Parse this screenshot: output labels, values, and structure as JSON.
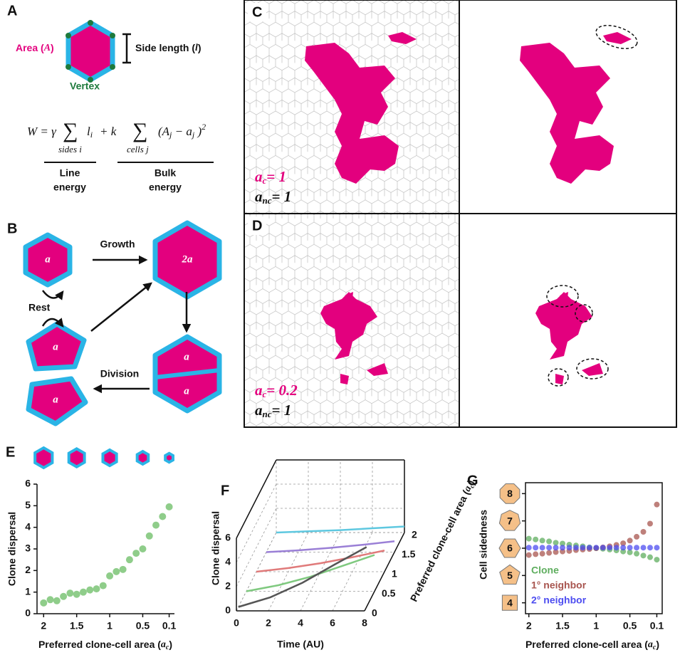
{
  "panel_a": {
    "label": "A",
    "area": [
      "Area (",
      "A",
      ")"
    ],
    "side": [
      "Side length (",
      "l",
      ")"
    ],
    "vertex": "Vertex",
    "equation": {
      "lhs": "W = γ",
      "sum1": "∑",
      "sum1_under": "sides i",
      "term1": "l",
      "term1_sub": "i",
      "plus": "+ k",
      "sum2": "∑",
      "sum2_under": "cells j",
      "term2": "(A",
      "term2_sub": "j",
      "minus": " − a",
      "minus_sub": "j",
      "close": ")",
      "power": "2"
    },
    "line_energy": [
      "Line",
      "energy"
    ],
    "bulk_energy": [
      "Bulk",
      "energy"
    ]
  },
  "panel_b": {
    "label": "B",
    "growth": "Growth",
    "rest": "Rest",
    "division": "Division",
    "cells": [
      "a",
      "2a",
      "a",
      "a",
      "a",
      "a"
    ]
  },
  "panel_c": {
    "label": "C",
    "clone": [
      "a",
      "c",
      "= 1"
    ],
    "nonclone": [
      "a",
      "nc",
      "= 1"
    ]
  },
  "panel_d": {
    "label": "D",
    "clone": [
      "a",
      "c",
      "= 0.2"
    ],
    "nonclone": [
      "a",
      "nc",
      "= 1"
    ]
  },
  "chart_data": [
    {
      "type": "scatter",
      "panel": "E",
      "x": [
        2,
        1.9,
        1.8,
        1.7,
        1.6,
        1.5,
        1.4,
        1.3,
        1.2,
        1.1,
        1,
        0.9,
        0.8,
        0.7,
        0.6,
        0.5,
        0.4,
        0.3,
        0.2,
        0.1
      ],
      "values": [
        0.5,
        0.65,
        0.6,
        0.8,
        0.95,
        0.9,
        1.0,
        1.1,
        1.15,
        1.3,
        1.75,
        1.95,
        2.05,
        2.5,
        2.8,
        3.0,
        3.6,
        4.1,
        4.5,
        4.95
      ],
      "color": "#8fcd8a",
      "xlim": [
        2.1,
        0.02
      ],
      "ylim": [
        0,
        6
      ],
      "xticks": [
        2,
        1.5,
        1,
        0.5,
        0.1
      ],
      "yticks": [
        0,
        1,
        2,
        3,
        4,
        5,
        6
      ],
      "ylabel": "Clone dispersal",
      "xlabel_parts": [
        "Preferred clone-cell area (",
        "a",
        "c",
        ")"
      ]
    },
    {
      "type": "line3d",
      "panel": "F",
      "x": [
        0,
        2,
        4,
        6,
        8
      ],
      "series": [
        {
          "depth": 2,
          "color": "#5ec8e0",
          "values": [
            0,
            0.1,
            0.2,
            0.35,
            0.5
          ]
        },
        {
          "depth": 1.5,
          "color": "#9a7fd6",
          "values": [
            0,
            0.15,
            0.35,
            0.6,
            0.9
          ]
        },
        {
          "depth": 1,
          "color": "#e07a7a",
          "values": [
            0,
            0.3,
            0.7,
            1.2,
            1.75
          ]
        },
        {
          "depth": 0.5,
          "color": "#7fc97f",
          "values": [
            0,
            0.5,
            1.2,
            2.1,
            3.0
          ]
        },
        {
          "depth": 0.1,
          "color": "#555555",
          "values": [
            0,
            0.8,
            2.0,
            3.5,
            4.95
          ]
        }
      ],
      "xlim": [
        0,
        8
      ],
      "ylim": [
        0,
        6
      ],
      "dlim": [
        0,
        2
      ],
      "xticks": [
        0,
        2,
        4,
        6,
        8
      ],
      "yticks": [
        0,
        2,
        4,
        6
      ],
      "dticks": [
        0,
        0.5,
        1,
        1.5,
        2
      ],
      "xlabel": "Time (AU)",
      "ylabel": "Clone dispersal",
      "dlabel_parts": [
        "Preferred clone-cell area (",
        "a",
        "c",
        ")"
      ]
    },
    {
      "type": "scatter-multi",
      "panel": "G",
      "x": [
        2,
        1.9,
        1.8,
        1.7,
        1.6,
        1.5,
        1.4,
        1.3,
        1.2,
        1.1,
        1,
        0.9,
        0.8,
        0.7,
        0.6,
        0.5,
        0.4,
        0.3,
        0.2,
        0.1
      ],
      "series": [
        {
          "name": "Clone",
          "color": "#5fae5f",
          "values": [
            6.35,
            6.32,
            6.28,
            6.25,
            6.2,
            6.17,
            6.13,
            6.1,
            6.07,
            6.03,
            6.0,
            5.98,
            5.95,
            5.92,
            5.88,
            5.85,
            5.8,
            5.73,
            5.67,
            5.58
          ]
        },
        {
          "name": "1° neighbor",
          "color": "#a8554f",
          "values": [
            5.75,
            5.78,
            5.8,
            5.83,
            5.86,
            5.88,
            5.9,
            5.93,
            5.95,
            5.97,
            6.0,
            6.03,
            6.07,
            6.12,
            6.18,
            6.28,
            6.42,
            6.6,
            6.9,
            7.6
          ]
        },
        {
          "name": "2° neighbor",
          "color": "#4d4df0",
          "values": [
            6.02,
            6.02,
            6.02,
            6.02,
            6.02,
            6.02,
            6.02,
            6.02,
            6.02,
            6.02,
            6.02,
            6.02,
            6.02,
            6.02,
            6.02,
            6.02,
            6.02,
            6.02,
            6.02,
            6.02
          ]
        }
      ],
      "xlim": [
        2.05,
        0.02
      ],
      "ylim": [
        3.6,
        8.4
      ],
      "xticks": [
        2,
        1.5,
        1,
        0.5,
        0.1
      ],
      "yticks": [
        4,
        5,
        6,
        7,
        8
      ],
      "tick_fill": "#f5c088",
      "ylabel": "Cell sidedness",
      "xlabel_parts": [
        "Preferred clone-cell area (",
        "a",
        "c",
        ")"
      ]
    }
  ]
}
